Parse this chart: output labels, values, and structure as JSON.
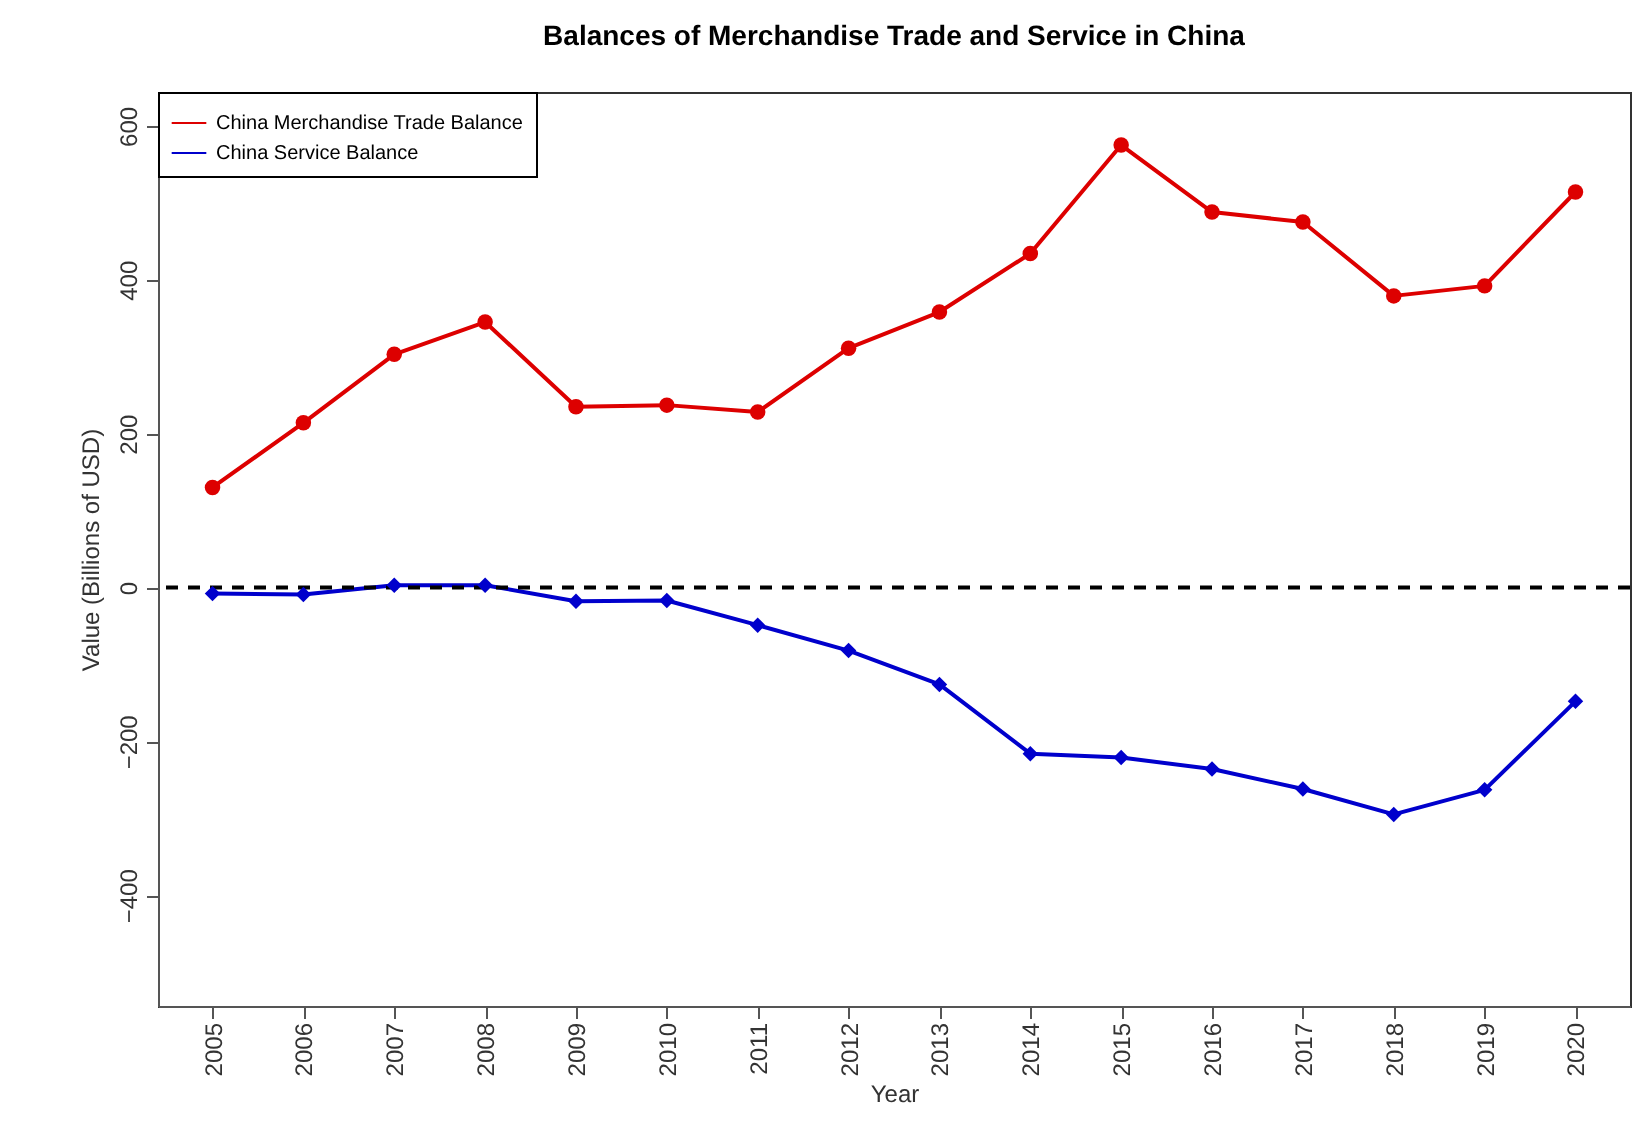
{
  "chart_data": {
    "type": "line",
    "title": "Balances of Merchandise Trade and Service in China",
    "xlabel": "Year",
    "ylabel": "Value (Billions of USD)",
    "x": [
      2005,
      2006,
      2007,
      2008,
      2009,
      2010,
      2011,
      2012,
      2013,
      2014,
      2015,
      2016,
      2017,
      2018,
      2019,
      2020
    ],
    "series": [
      {
        "name": "China Merchandise Trade Balance",
        "color": "#dd0000",
        "marker": "circle",
        "values": [
          130,
          214,
          303,
          345,
          235,
          237,
          228,
          311,
          358,
          434,
          575,
          488,
          475,
          379,
          392,
          514
        ]
      },
      {
        "name": "China Service Balance",
        "color": "#0000cc",
        "marker": "diamond",
        "values": [
          -8,
          -9,
          3,
          3,
          -18,
          -17,
          -49,
          -82,
          -126,
          -216,
          -221,
          -236,
          -262,
          -295,
          -263,
          -148
        ]
      }
    ],
    "xlim": [
      2004.4,
      2020.6
    ],
    "xticks": [
      2005,
      2006,
      2007,
      2008,
      2009,
      2010,
      2011,
      2012,
      2013,
      2014,
      2015,
      2016,
      2017,
      2018,
      2019,
      2020
    ],
    "ylim": [
      -544,
      644
    ],
    "yticks": [
      -400,
      -200,
      0,
      200,
      400,
      600
    ],
    "ref_lines": [
      {
        "axis": "y",
        "value": 0,
        "color": "#000000",
        "line_style": "dashed"
      }
    ],
    "legend": "top left",
    "grid": false,
    "line_style": "solid"
  }
}
